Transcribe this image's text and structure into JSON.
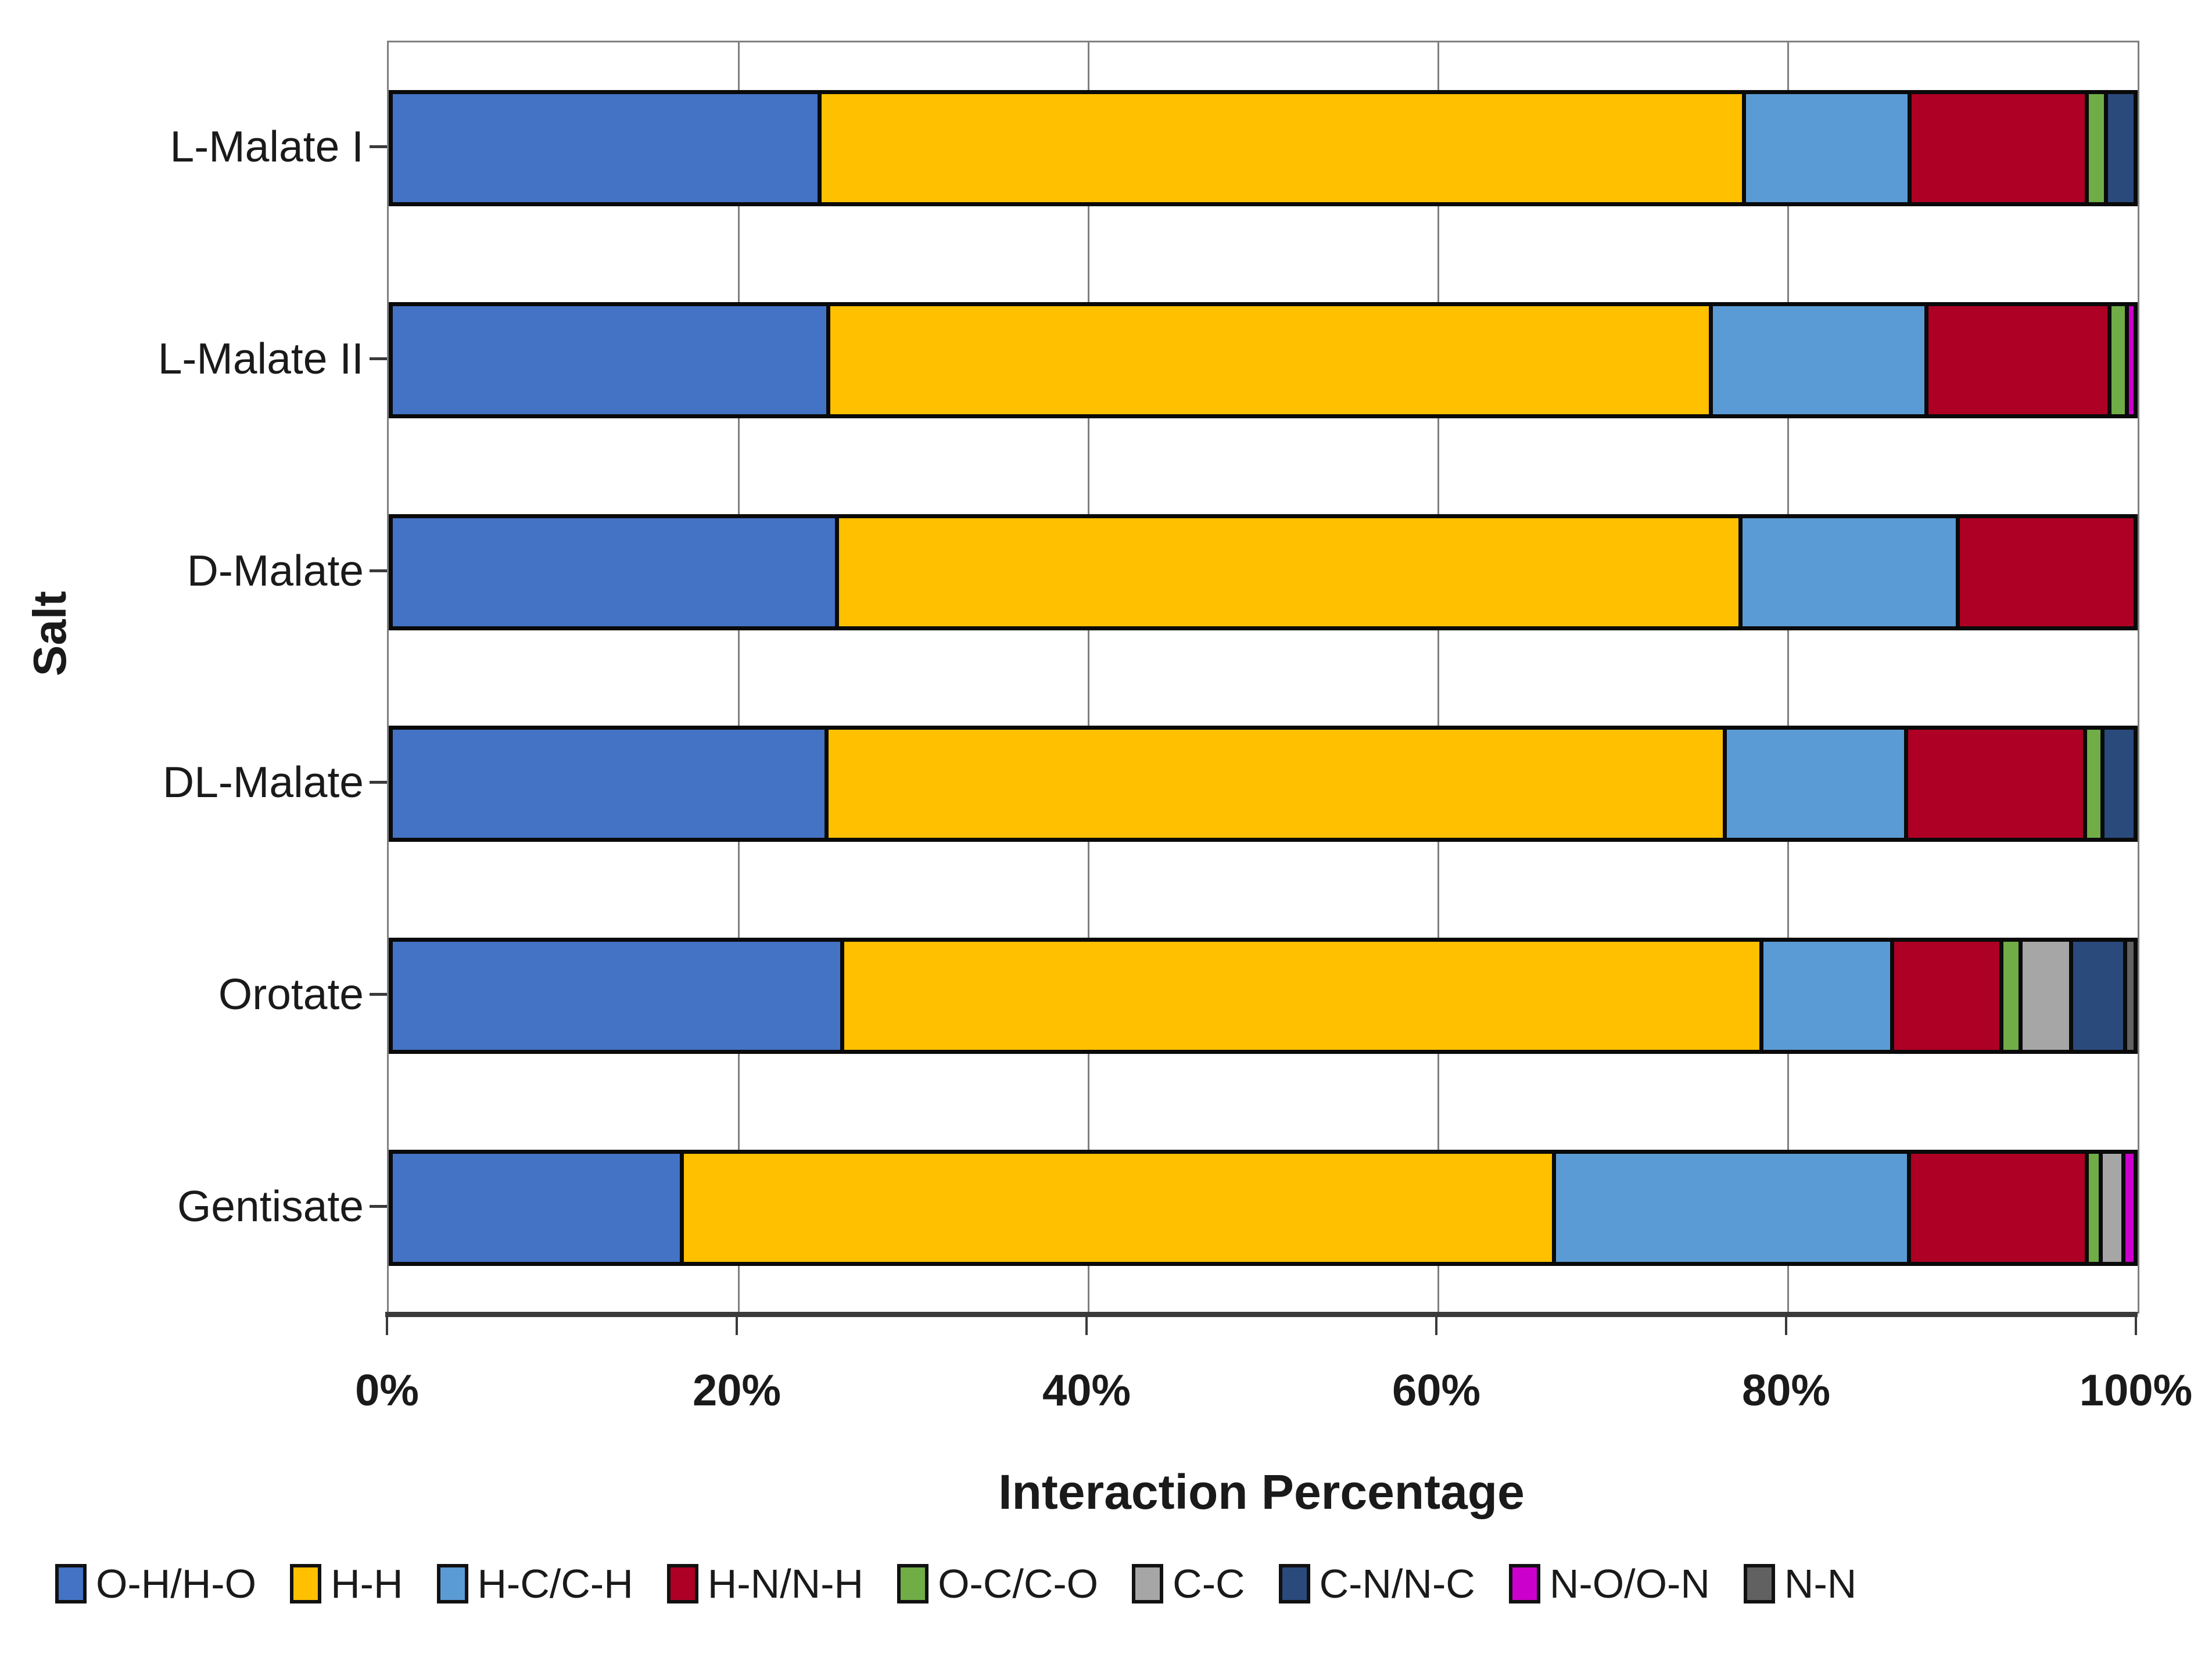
{
  "figure": {
    "y_axis_title": "Salt",
    "x_axis_title": "Interaction Percentage"
  },
  "chart_data": {
    "type": "bar",
    "orientation": "horizontal",
    "stacked": true,
    "title": "",
    "xlabel": "Interaction Percentage",
    "ylabel": "Salt",
    "xlim": [
      0,
      100
    ],
    "grid": "vertical",
    "legend_position": "bottom",
    "x_ticks": [
      {
        "value": 0,
        "label": "0%"
      },
      {
        "value": 20,
        "label": "20%"
      },
      {
        "value": 40,
        "label": "40%"
      },
      {
        "value": 60,
        "label": "60%"
      },
      {
        "value": 80,
        "label": "80%"
      },
      {
        "value": 100,
        "label": "100%"
      }
    ],
    "categories": [
      "L-Malate I",
      "L-Malate II",
      "D-Malate",
      "DL-Malate",
      "Orotate",
      "Gentisate"
    ],
    "series": [
      {
        "name": "O-H/H-O",
        "color": "#4472C4",
        "values": [
          24.4,
          24.9,
          25.4,
          24.8,
          25.7,
          16.5
        ]
      },
      {
        "name": "H-H",
        "color": "#FFC000",
        "values": [
          53.1,
          50.7,
          51.9,
          51.6,
          52.8,
          50.1
        ]
      },
      {
        "name": "H-C/C-H",
        "color": "#5B9BD5",
        "values": [
          9.5,
          12.4,
          12.5,
          10.4,
          7.5,
          20.4
        ]
      },
      {
        "name": "H-N/N-H",
        "color": "#AE0025",
        "values": [
          10.2,
          10.5,
          10.2,
          10.3,
          6.3,
          10.2
        ]
      },
      {
        "name": "O-C/C-O",
        "color": "#70AD47",
        "values": [
          1.1,
          1.0,
          0,
          1.0,
          1.1,
          0.8
        ]
      },
      {
        "name": "C-C",
        "color": "#A6A6A6",
        "values": [
          0,
          0,
          0,
          0,
          2.9,
          1.3
        ]
      },
      {
        "name": "C-N/N-C",
        "color": "#2A4A7C",
        "values": [
          1.7,
          0,
          0,
          1.9,
          3.1,
          0
        ]
      },
      {
        "name": "N-O/O-N",
        "color": "#CC00CC",
        "values": [
          0,
          0.5,
          0,
          0,
          0,
          0.7
        ]
      },
      {
        "name": "N-N",
        "color": "#616161",
        "values": [
          0,
          0,
          0,
          0,
          0.6,
          0
        ]
      }
    ]
  }
}
